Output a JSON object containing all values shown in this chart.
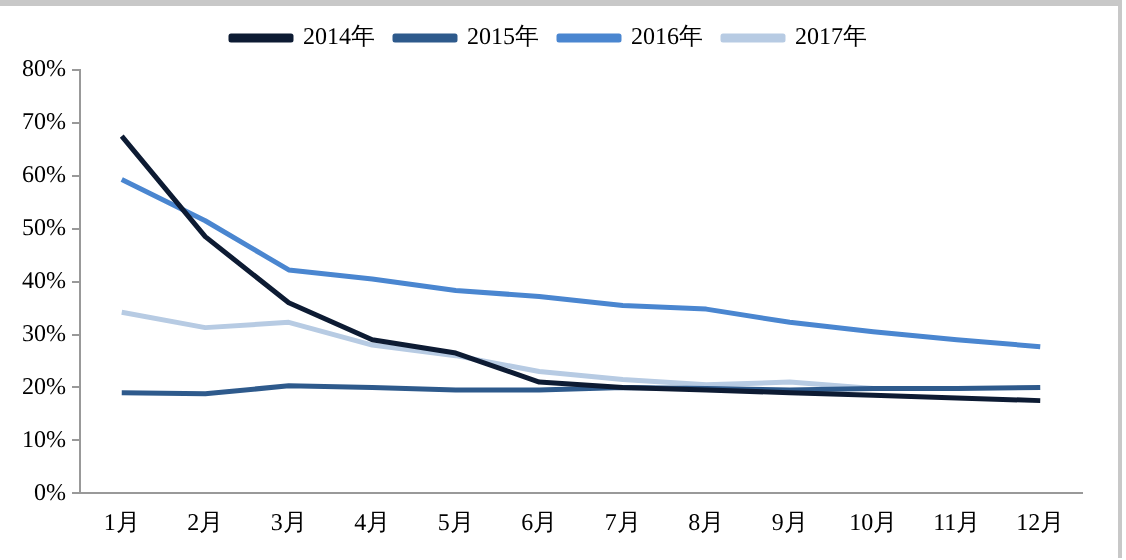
{
  "chart_data": {
    "type": "line",
    "categories": [
      "1月",
      "2月",
      "3月",
      "4月",
      "5月",
      "6月",
      "7月",
      "8月",
      "9月",
      "10月",
      "11月",
      "12月"
    ],
    "series": [
      {
        "name": "2014年",
        "color": "#0d1b33",
        "values": [
          67.5,
          48.5,
          36,
          29,
          26.5,
          21,
          20,
          19.5,
          19,
          18.5,
          18,
          17.5
        ]
      },
      {
        "name": "2015年",
        "color": "#2e5a8c",
        "values": [
          19,
          18.8,
          20.3,
          20,
          19.5,
          19.5,
          20,
          19.8,
          19.5,
          19.8,
          19.8,
          20
        ]
      },
      {
        "name": "2016年",
        "color": "#4a86d0",
        "values": [
          59.3,
          51.5,
          42.2,
          40.5,
          38.3,
          37.2,
          35.5,
          34.8,
          32.3,
          30.5,
          29,
          27.7
        ]
      },
      {
        "name": "2017年",
        "color": "#b7cbe3",
        "values": [
          34.2,
          31.3,
          32.3,
          28,
          26,
          23,
          21.5,
          20.5,
          21,
          19.8,
          null,
          null
        ]
      }
    ],
    "ylim": [
      0,
      80
    ],
    "yticks": [
      {
        "value": 0,
        "label": "0%"
      },
      {
        "value": 10,
        "label": "10%"
      },
      {
        "value": 20,
        "label": "20%"
      },
      {
        "value": 30,
        "label": "30%"
      },
      {
        "value": 40,
        "label": "40%"
      },
      {
        "value": 50,
        "label": "50%"
      },
      {
        "value": 60,
        "label": "60%"
      },
      {
        "value": 70,
        "label": "70%"
      },
      {
        "value": 80,
        "label": "80%"
      }
    ],
    "grid": false,
    "legend": "top",
    "marker": "none",
    "line_style": "solid"
  }
}
